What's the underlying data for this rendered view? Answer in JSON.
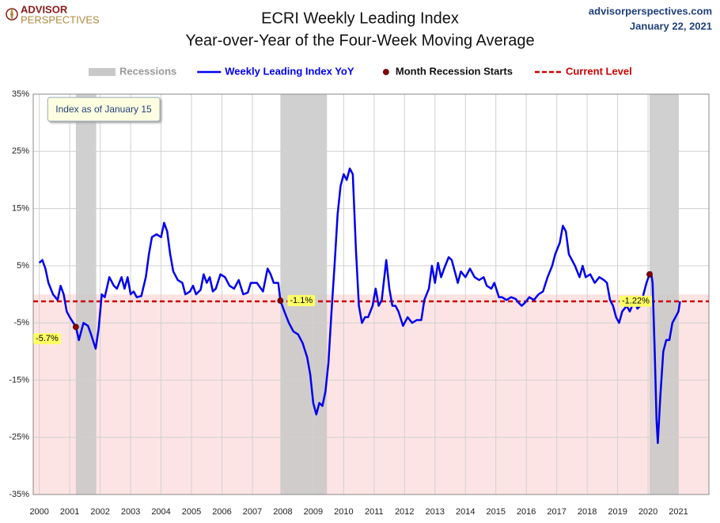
{
  "chart_data": {
    "type": "line",
    "title": "ECRI Weekly Leading Index",
    "subtitle": "Year-over-Year of the Four-Week Moving Average",
    "brand": [
      "ADVISOR",
      "PERSPECTIVES"
    ],
    "source": "advisorperspectives.com",
    "date": "January 22, 2021",
    "note": "Index as of January 15",
    "xlim": [
      1999.8,
      2022
    ],
    "ylim": [
      -35,
      35
    ],
    "xticks": [
      2000,
      2001,
      2002,
      2003,
      2004,
      2005,
      2006,
      2007,
      2008,
      2009,
      2010,
      2011,
      2012,
      2013,
      2014,
      2015,
      2016,
      2017,
      2018,
      2019,
      2020,
      2021
    ],
    "yticks": [
      {
        "value": -35,
        "label": "-35%"
      },
      {
        "value": -25,
        "label": "-25%"
      },
      {
        "value": -15,
        "label": "-15%"
      },
      {
        "value": -5,
        "label": "-5%"
      },
      {
        "value": 5,
        "label": "5%"
      },
      {
        "value": 15,
        "label": "15%"
      },
      {
        "value": 25,
        "label": "25%"
      },
      {
        "value": 35,
        "label": "35%"
      }
    ],
    "grid": true,
    "x": [
      2000.0,
      2000.1,
      2000.2,
      2000.3,
      2000.45,
      2000.6,
      2000.7,
      2000.8,
      2000.9,
      2001.0,
      2001.2,
      2001.3,
      2001.45,
      2001.6,
      2001.7,
      2001.85,
      2001.95,
      2002.05,
      2002.15,
      2002.3,
      2002.45,
      2002.55,
      2002.7,
      2002.8,
      2002.9,
      2003.0,
      2003.1,
      2003.2,
      2003.35,
      2003.5,
      2003.6,
      2003.7,
      2003.85,
      2004.0,
      2004.1,
      2004.2,
      2004.3,
      2004.4,
      2004.55,
      2004.7,
      2004.8,
      2004.95,
      2005.05,
      2005.15,
      2005.3,
      2005.4,
      2005.5,
      2005.6,
      2005.7,
      2005.8,
      2005.95,
      2006.1,
      2006.25,
      2006.4,
      2006.55,
      2006.7,
      2006.85,
      2006.95,
      2007.15,
      2007.35,
      2007.5,
      2007.6,
      2007.7,
      2007.85,
      2007.92,
      2008.05,
      2008.2,
      2008.35,
      2008.5,
      2008.65,
      2008.8,
      2008.9,
      2009.0,
      2009.1,
      2009.2,
      2009.3,
      2009.4,
      2009.5,
      2009.6,
      2009.7,
      2009.8,
      2009.9,
      2010.0,
      2010.1,
      2010.2,
      2010.3,
      2010.4,
      2010.5,
      2010.6,
      2010.7,
      2010.8,
      2010.95,
      2011.05,
      2011.15,
      2011.25,
      2011.4,
      2011.5,
      2011.6,
      2011.7,
      2011.8,
      2011.95,
      2012.1,
      2012.25,
      2012.4,
      2012.55,
      2012.65,
      2012.8,
      2012.9,
      2013.0,
      2013.1,
      2013.2,
      2013.3,
      2013.45,
      2013.55,
      2013.65,
      2013.75,
      2013.85,
      2014.0,
      2014.15,
      2014.3,
      2014.45,
      2014.6,
      2014.7,
      2014.85,
      2014.95,
      2015.1,
      2015.2,
      2015.35,
      2015.5,
      2015.65,
      2015.75,
      2015.85,
      2015.95,
      2016.1,
      2016.25,
      2016.4,
      2016.55,
      2016.7,
      2016.85,
      2016.95,
      2017.1,
      2017.2,
      2017.3,
      2017.4,
      2017.5,
      2017.6,
      2017.75,
      2017.85,
      2017.95,
      2018.1,
      2018.25,
      2018.4,
      2018.55,
      2018.65,
      2018.75,
      2018.85,
      2018.95,
      2019.05,
      2019.15,
      2019.3,
      2019.4,
      2019.55,
      2019.65,
      2019.75,
      2019.85,
      2019.95,
      2020.05,
      2020.1,
      2020.15,
      2020.22,
      2020.28,
      2020.32,
      2020.4,
      2020.5,
      2020.6,
      2020.7,
      2020.8,
      2020.9,
      2021.0,
      2021.05
    ],
    "series": [
      {
        "name": "Weekly Leading Index YoY",
        "color": "#0000ee",
        "values": [
          5.5,
          6,
          4.5,
          2,
          0,
          -1,
          1.5,
          0,
          -3,
          -4,
          -5.7,
          -8,
          -5,
          -5.5,
          -7,
          -9.5,
          -6,
          0,
          -0.5,
          3,
          1.5,
          1,
          3,
          1,
          3,
          0,
          0.5,
          -0.5,
          -0.3,
          3,
          7,
          10,
          10.5,
          10,
          12.5,
          11,
          7,
          4,
          2.5,
          2,
          0,
          0.5,
          1.5,
          0,
          0.8,
          3.5,
          2,
          3,
          0.5,
          1,
          3.5,
          3,
          1.5,
          1,
          2.5,
          0,
          0.3,
          2,
          2,
          0.5,
          4.5,
          3.5,
          2,
          2,
          -1.1,
          -3,
          -5,
          -6.5,
          -7,
          -8.5,
          -11,
          -14,
          -19,
          -21,
          -19,
          -19.5,
          -17,
          -12,
          -3,
          5,
          14,
          19,
          21,
          20,
          22,
          21,
          8,
          -2,
          -5,
          -4,
          -4,
          -2,
          1,
          -2,
          -1,
          6,
          1,
          -2,
          -2,
          -3,
          -5.5,
          -4,
          -5,
          -4.5,
          -4.5,
          -1,
          1,
          5,
          2,
          5.5,
          3,
          4.5,
          6.5,
          6,
          4,
          2,
          4,
          3,
          4.5,
          3,
          2.5,
          3,
          1.5,
          1,
          2,
          -0.5,
          -0.5,
          -1,
          -0.5,
          -0.8,
          -1.5,
          -2,
          -1.5,
          -0.5,
          -1,
          0,
          0.5,
          3,
          5,
          7,
          9,
          12,
          11,
          7,
          6,
          5,
          3,
          5,
          3,
          3.5,
          2,
          3,
          2.5,
          2,
          -1,
          -2,
          -4,
          -5,
          -3,
          -2,
          -3,
          -1,
          -2.5,
          -2,
          0,
          2,
          3.5,
          3.8,
          2,
          -10,
          -22,
          -26,
          -18,
          -10,
          -8,
          -8,
          -5,
          -4,
          -3,
          -1.22
        ]
      }
    ],
    "recessions": {
      "name": "Recessions",
      "color": "#c8c8c8",
      "ranges": [
        [
          2001.2,
          2001.87
        ],
        [
          2007.92,
          2009.45
        ],
        [
          2020.05,
          2020.99
        ]
      ]
    },
    "recession_starts": {
      "name": "Month Recession Starts",
      "color": "#8b0000",
      "x": [
        2001.2,
        2007.92,
        2020.05
      ],
      "values": [
        -5.7,
        -1.1,
        3.5
      ],
      "value_labels": [
        "-5.7%",
        "-1.1%",
        null
      ]
    },
    "current_level": {
      "name": "Current Level",
      "color": "#cc0000",
      "value": -1.22,
      "value_label": "-1.22%"
    }
  }
}
